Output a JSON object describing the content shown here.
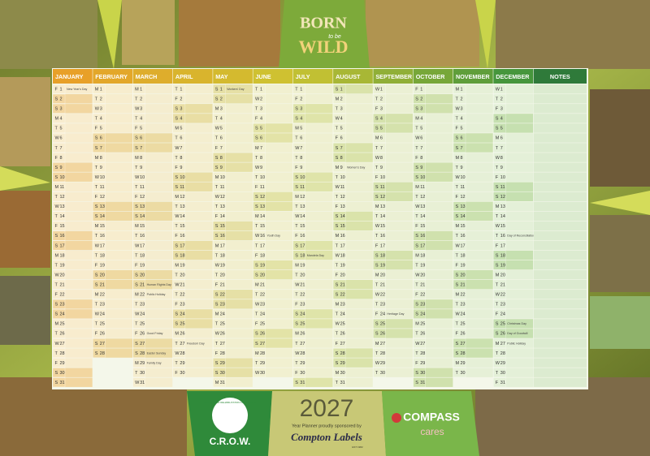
{
  "header": {
    "logo_top": "BORN",
    "logo_middle": "to be",
    "logo_bottom": "WILD"
  },
  "table": {
    "notes_header": "NOTES",
    "months": [
      {
        "name": "JANUARY",
        "weekdays": [
          "F",
          "S",
          "S",
          "M",
          "T",
          "W",
          "T",
          "F",
          "S",
          "S",
          "M",
          "T",
          "W",
          "T",
          "F",
          "S",
          "S",
          "M",
          "T",
          "W",
          "T",
          "F",
          "S",
          "S",
          "M",
          "T",
          "W",
          "T",
          "F",
          "S",
          "S"
        ],
        "dates": [
          1,
          2,
          3,
          4,
          5,
          6,
          7,
          8,
          9,
          10,
          11,
          12,
          13,
          14,
          15,
          16,
          17,
          18,
          19,
          20,
          21,
          22,
          23,
          24,
          25,
          26,
          27,
          28,
          29,
          30,
          31
        ],
        "holidays": {
          "1": "New Year's Day"
        }
      },
      {
        "name": "FEBRUARY",
        "weekdays": [
          "M",
          "T",
          "W",
          "T",
          "F",
          "S",
          "S",
          "M",
          "T",
          "W",
          "T",
          "F",
          "S",
          "S",
          "M",
          "T",
          "W",
          "T",
          "F",
          "S",
          "S",
          "M",
          "T",
          "W",
          "T",
          "F",
          "S",
          "S"
        ],
        "dates": [
          1,
          2,
          3,
          4,
          5,
          6,
          7,
          8,
          9,
          10,
          11,
          12,
          13,
          14,
          15,
          16,
          17,
          18,
          19,
          20,
          21,
          22,
          23,
          24,
          25,
          26,
          27,
          28
        ],
        "holidays": {}
      },
      {
        "name": "MARCH",
        "weekdays": [
          "M",
          "T",
          "W",
          "T",
          "F",
          "S",
          "S",
          "M",
          "T",
          "W",
          "T",
          "F",
          "S",
          "S",
          "M",
          "T",
          "W",
          "T",
          "F",
          "S",
          "S",
          "M",
          "T",
          "W",
          "T",
          "F",
          "S",
          "S",
          "M",
          "T",
          "W"
        ],
        "dates": [
          1,
          2,
          3,
          4,
          5,
          6,
          7,
          8,
          9,
          10,
          11,
          12,
          13,
          14,
          15,
          16,
          17,
          18,
          19,
          20,
          21,
          22,
          23,
          24,
          25,
          26,
          27,
          28,
          29,
          30,
          31
        ],
        "holidays": {
          "21": "Human Rights Day",
          "22": "Public Holiday",
          "26": "Good Friday",
          "28": "Easter Sunday",
          "29": "Family Day"
        }
      },
      {
        "name": "APRIL",
        "weekdays": [
          "T",
          "F",
          "S",
          "S",
          "M",
          "T",
          "W",
          "T",
          "F",
          "S",
          "S",
          "M",
          "T",
          "W",
          "T",
          "F",
          "S",
          "S",
          "M",
          "T",
          "W",
          "T",
          "F",
          "S",
          "S",
          "M",
          "T",
          "W",
          "T",
          "F"
        ],
        "dates": [
          1,
          2,
          3,
          4,
          5,
          6,
          7,
          8,
          9,
          10,
          11,
          12,
          13,
          14,
          15,
          16,
          17,
          18,
          19,
          20,
          21,
          22,
          23,
          24,
          25,
          26,
          27,
          28,
          29,
          30
        ],
        "holidays": {
          "27": "Freedom Day"
        }
      },
      {
        "name": "MAY",
        "weekdays": [
          "S",
          "S",
          "M",
          "T",
          "W",
          "T",
          "F",
          "S",
          "S",
          "M",
          "T",
          "W",
          "T",
          "F",
          "S",
          "S",
          "M",
          "T",
          "W",
          "T",
          "F",
          "S",
          "S",
          "M",
          "T",
          "W",
          "T",
          "F",
          "S",
          "S",
          "M"
        ],
        "dates": [
          1,
          2,
          3,
          4,
          5,
          6,
          7,
          8,
          9,
          10,
          11,
          12,
          13,
          14,
          15,
          16,
          17,
          18,
          19,
          20,
          21,
          22,
          23,
          24,
          25,
          26,
          27,
          28,
          29,
          30,
          31
        ],
        "holidays": {
          "1": "Workers' Day"
        }
      },
      {
        "name": "JUNE",
        "weekdays": [
          "T",
          "W",
          "T",
          "F",
          "S",
          "S",
          "M",
          "T",
          "W",
          "T",
          "F",
          "S",
          "S",
          "M",
          "T",
          "W",
          "T",
          "F",
          "S",
          "S",
          "M",
          "T",
          "W",
          "T",
          "F",
          "S",
          "S",
          "M",
          "T",
          "W"
        ],
        "dates": [
          1,
          2,
          3,
          4,
          5,
          6,
          7,
          8,
          9,
          10,
          11,
          12,
          13,
          14,
          15,
          16,
          17,
          18,
          19,
          20,
          21,
          22,
          23,
          24,
          25,
          26,
          27,
          28,
          29,
          30
        ],
        "holidays": {
          "16": "Youth Day"
        }
      },
      {
        "name": "JULY",
        "weekdays": [
          "T",
          "F",
          "S",
          "S",
          "M",
          "T",
          "W",
          "T",
          "F",
          "S",
          "S",
          "M",
          "T",
          "W",
          "T",
          "F",
          "S",
          "S",
          "M",
          "T",
          "W",
          "T",
          "F",
          "S",
          "S",
          "M",
          "T",
          "W",
          "T",
          "F",
          "S"
        ],
        "dates": [
          1,
          2,
          3,
          4,
          5,
          6,
          7,
          8,
          9,
          10,
          11,
          12,
          13,
          14,
          15,
          16,
          17,
          18,
          19,
          20,
          21,
          22,
          23,
          24,
          25,
          26,
          27,
          28,
          29,
          30,
          31
        ],
        "holidays": {
          "18": "Mandela Day"
        }
      },
      {
        "name": "AUGUST",
        "weekdays": [
          "S",
          "M",
          "T",
          "W",
          "T",
          "F",
          "S",
          "S",
          "M",
          "T",
          "W",
          "T",
          "F",
          "S",
          "S",
          "M",
          "T",
          "W",
          "T",
          "F",
          "S",
          "S",
          "M",
          "T",
          "W",
          "T",
          "F",
          "S",
          "S",
          "M",
          "T"
        ],
        "dates": [
          1,
          2,
          3,
          4,
          5,
          6,
          7,
          8,
          9,
          10,
          11,
          12,
          13,
          14,
          15,
          16,
          17,
          18,
          19,
          20,
          21,
          22,
          23,
          24,
          25,
          26,
          27,
          28,
          29,
          30,
          31
        ],
        "holidays": {
          "9": "Women's Day"
        }
      },
      {
        "name": "SEPTEMBER",
        "weekdays": [
          "W",
          "T",
          "F",
          "S",
          "S",
          "M",
          "T",
          "W",
          "T",
          "F",
          "S",
          "S",
          "M",
          "T",
          "W",
          "T",
          "F",
          "S",
          "S",
          "M",
          "T",
          "W",
          "T",
          "F",
          "S",
          "S",
          "M",
          "T",
          "W",
          "T"
        ],
        "dates": [
          1,
          2,
          3,
          4,
          5,
          6,
          7,
          8,
          9,
          10,
          11,
          12,
          13,
          14,
          15,
          16,
          17,
          18,
          19,
          20,
          21,
          22,
          23,
          24,
          25,
          26,
          27,
          28,
          29,
          30
        ],
        "holidays": {
          "24": "Heritage Day"
        }
      },
      {
        "name": "OCTOBER",
        "weekdays": [
          "F",
          "S",
          "S",
          "M",
          "T",
          "W",
          "T",
          "F",
          "S",
          "S",
          "M",
          "T",
          "W",
          "T",
          "F",
          "S",
          "S",
          "M",
          "T",
          "W",
          "T",
          "F",
          "S",
          "S",
          "M",
          "T",
          "W",
          "T",
          "F",
          "S",
          "S"
        ],
        "dates": [
          1,
          2,
          3,
          4,
          5,
          6,
          7,
          8,
          9,
          10,
          11,
          12,
          13,
          14,
          15,
          16,
          17,
          18,
          19,
          20,
          21,
          22,
          23,
          24,
          25,
          26,
          27,
          28,
          29,
          30,
          31
        ],
        "holidays": {}
      },
      {
        "name": "NOVEMBER",
        "weekdays": [
          "M",
          "T",
          "W",
          "T",
          "F",
          "S",
          "S",
          "M",
          "T",
          "W",
          "T",
          "F",
          "S",
          "S",
          "M",
          "T",
          "W",
          "T",
          "F",
          "S",
          "S",
          "M",
          "T",
          "W",
          "T",
          "F",
          "S",
          "S",
          "M",
          "T"
        ],
        "dates": [
          1,
          2,
          3,
          4,
          5,
          6,
          7,
          8,
          9,
          10,
          11,
          12,
          13,
          14,
          15,
          16,
          17,
          18,
          19,
          20,
          21,
          22,
          23,
          24,
          25,
          26,
          27,
          28,
          29,
          30
        ],
        "holidays": {}
      },
      {
        "name": "DECEMBER",
        "weekdays": [
          "W",
          "T",
          "F",
          "S",
          "S",
          "M",
          "T",
          "W",
          "T",
          "F",
          "S",
          "S",
          "M",
          "T",
          "W",
          "T",
          "F",
          "S",
          "S",
          "M",
          "T",
          "W",
          "T",
          "F",
          "S",
          "S",
          "M",
          "T",
          "W",
          "T",
          "F"
        ],
        "dates": [
          1,
          2,
          3,
          4,
          5,
          6,
          7,
          8,
          9,
          10,
          11,
          12,
          13,
          14,
          15,
          16,
          17,
          18,
          19,
          20,
          21,
          22,
          23,
          24,
          25,
          26,
          27,
          28,
          29,
          30,
          31
        ],
        "holidays": {
          "16": "Day of Reconciliation",
          "25": "Christmas Day",
          "26": "Day of Goodwill",
          "27": "Public Holiday"
        }
      }
    ]
  },
  "footer": {
    "crow_arc": "CENTRE FOR REHABILITATION OF WILDLIFE",
    "crow_name": "C.R.O.W.",
    "year": "2027",
    "sponsor_line": "Year Planner proudly sponsored by",
    "sponsor": "Compton Labels",
    "sponsor_est": "EST 1982",
    "compass": "COMPASS",
    "compass_tag": "cares"
  }
}
